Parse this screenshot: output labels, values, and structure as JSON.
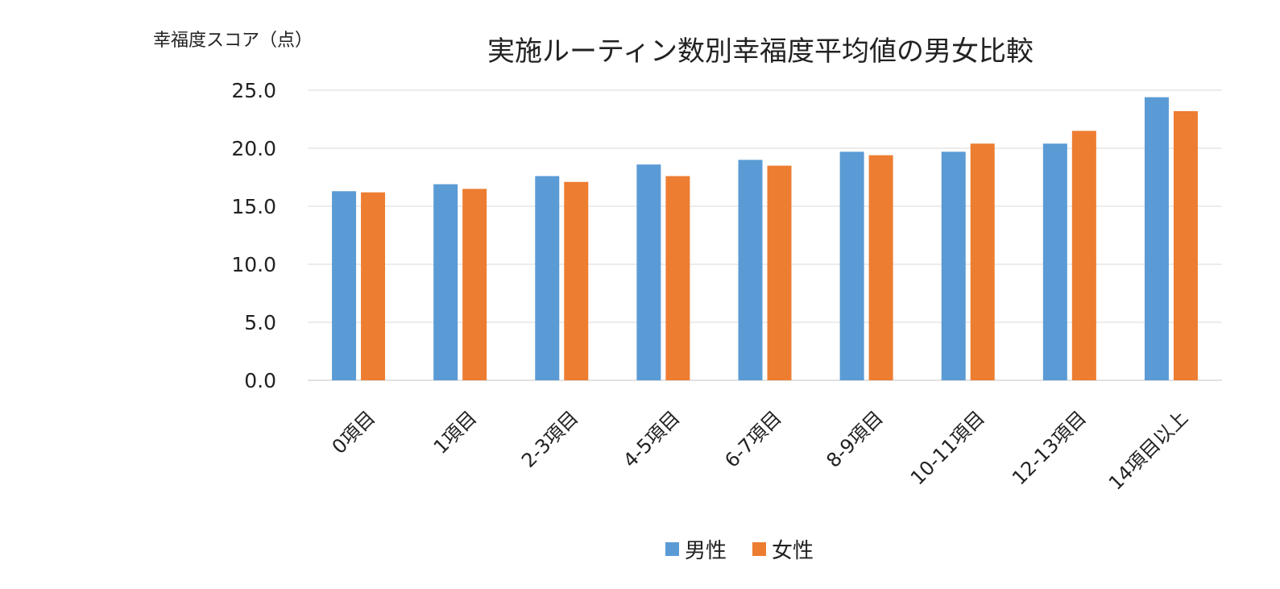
{
  "chart_data": {
    "type": "bar",
    "title": "実施ルーティン数別幸福度平均値の男女比較",
    "ylabel": "幸福度スコア（点）",
    "xlabel": "",
    "ylim": [
      0,
      25
    ],
    "yticks": [
      "0.0",
      "5.0",
      "10.0",
      "15.0",
      "20.0",
      "25.0"
    ],
    "categories": [
      "0項目",
      "1項目",
      "2-3項目",
      "4-5項目",
      "6-7項目",
      "8-9項目",
      "10-11項目",
      "12-13項目",
      "14項目以上"
    ],
    "series": [
      {
        "name": "男性",
        "color": "#5b9bd5",
        "values": [
          16.3,
          16.9,
          17.6,
          18.6,
          19.0,
          19.7,
          19.7,
          20.4,
          24.4
        ]
      },
      {
        "name": "女性",
        "color": "#ed7d31",
        "values": [
          16.2,
          16.5,
          17.1,
          17.6,
          18.5,
          19.4,
          20.4,
          21.5,
          23.2
        ]
      }
    ],
    "grid": true,
    "legend": "bottom"
  }
}
